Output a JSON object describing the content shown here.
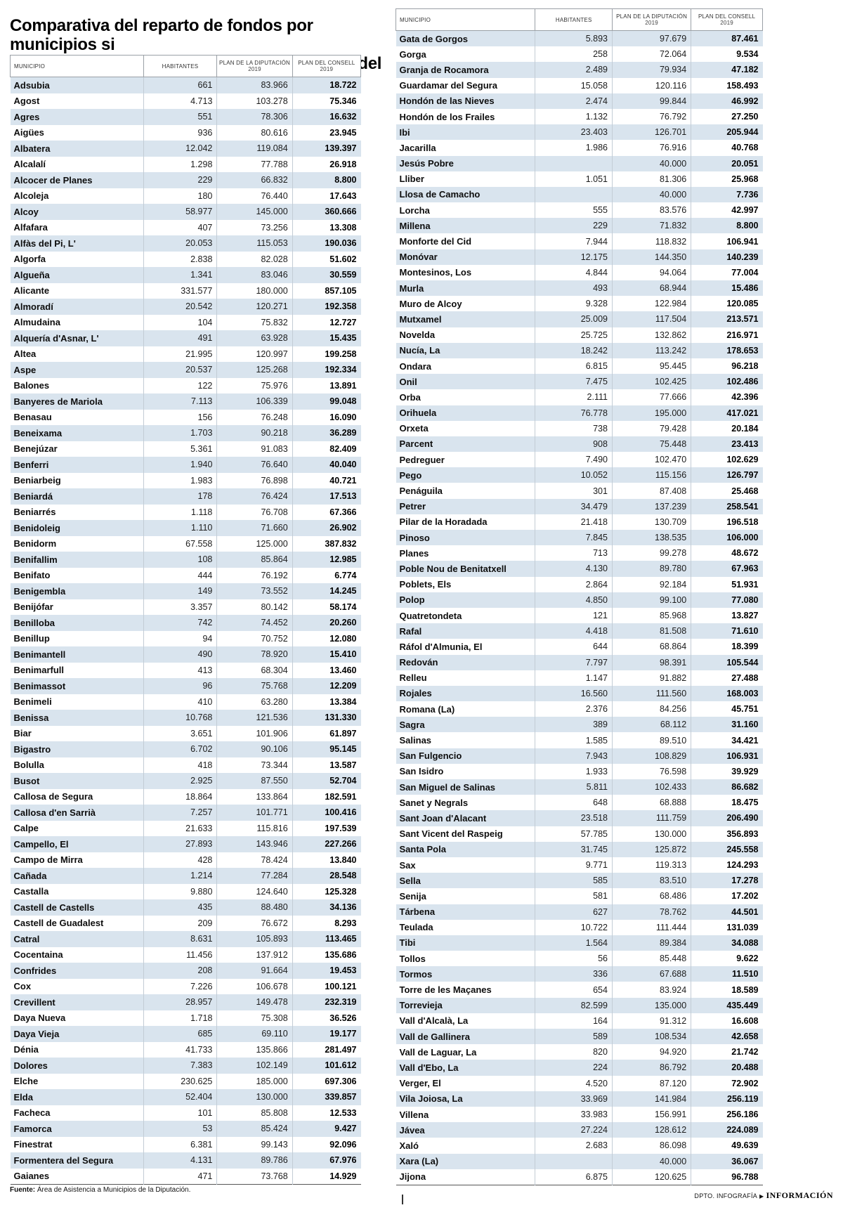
{
  "page": {
    "title_line1": "Comparativa del reparto de fondos por municipios si",
    "title_line2": "se aplicara el plan de la Diputación o el plan del Consell"
  },
  "header": {
    "municipio": "MUNICIPIO",
    "habitantes": "HABITANTES",
    "plan_diputacion": "PLAN DE LA DIPUTACIÓN",
    "plan_consell": "PLAN DEL CONSELL",
    "year": "2019"
  },
  "footer": {
    "source_label": "Fuente:",
    "source_text": " Área de Asistencia a Municipios de la Diputación.",
    "credit": "DPTO. INFOGRAFÍA",
    "brand": "INFORMACIÓN"
  },
  "colors": {
    "row_shade": "#d9e4ee"
  },
  "chart_data": [
    {
      "type": "table",
      "title": "Comparativa del reparto de fondos por municipios si se aplicara el plan de la Diputación o el plan del Consell",
      "columns": [
        "MUNICIPIO",
        "HABITANTES",
        "PLAN DE LA DIPUTACIÓN 2019",
        "PLAN DEL CONSELL 2019"
      ],
      "rows": [
        [
          "Adsubia",
          "661",
          "83.966",
          "18.722"
        ],
        [
          "Agost",
          "4.713",
          "103.278",
          "75.346"
        ],
        [
          "Agres",
          "551",
          "78.306",
          "16.632"
        ],
        [
          "Aigües",
          "936",
          "80.616",
          "23.945"
        ],
        [
          "Albatera",
          "12.042",
          "119.084",
          "139.397"
        ],
        [
          "Alcalalí",
          "1.298",
          "77.788",
          "26.918"
        ],
        [
          "Alcocer de Planes",
          "229",
          "66.832",
          "8.800"
        ],
        [
          "Alcoleja",
          "180",
          "76.440",
          "17.643"
        ],
        [
          "Alcoy",
          "58.977",
          "145.000",
          "360.666"
        ],
        [
          "Alfafara",
          "407",
          "73.256",
          "13.308"
        ],
        [
          "Alfàs del Pi, L'",
          "20.053",
          "115.053",
          "190.036"
        ],
        [
          "Algorfa",
          "2.838",
          "82.028",
          "51.602"
        ],
        [
          "Algueña",
          "1.341",
          "83.046",
          "30.559"
        ],
        [
          "Alicante",
          "331.577",
          "180.000",
          "857.105"
        ],
        [
          "Almoradí",
          "20.542",
          "120.271",
          "192.358"
        ],
        [
          "Almudaina",
          "104",
          "75.832",
          "12.727"
        ],
        [
          "Alquería d'Asnar, L'",
          "491",
          "63.928",
          "15.435"
        ],
        [
          "Altea",
          "21.995",
          "120.997",
          "199.258"
        ],
        [
          "Aspe",
          "20.537",
          "125.268",
          "192.334"
        ],
        [
          "Balones",
          "122",
          "75.976",
          "13.891"
        ],
        [
          "Banyeres de Mariola",
          "7.113",
          "106.339",
          "99.048"
        ],
        [
          "Benasau",
          "156",
          "76.248",
          "16.090"
        ],
        [
          "Beneixama",
          "1.703",
          "90.218",
          "36.289"
        ],
        [
          "Benejúzar",
          "5.361",
          "91.083",
          "82.409"
        ],
        [
          "Benferri",
          "1.940",
          "76.640",
          "40.040"
        ],
        [
          "Beniarbeig",
          "1.983",
          "76.898",
          "40.721"
        ],
        [
          "Beniardá",
          "178",
          "76.424",
          "17.513"
        ],
        [
          "Beniarrés",
          "1.118",
          "76.708",
          "67.366"
        ],
        [
          "Benidoleig",
          "1.110",
          "71.660",
          "26.902"
        ],
        [
          "Benidorm",
          "67.558",
          "125.000",
          "387.832"
        ],
        [
          "Benifallim",
          "108",
          "85.864",
          "12.985"
        ],
        [
          "Benifato",
          "444",
          "76.192",
          "6.774"
        ],
        [
          "Benigembla",
          "149",
          "73.552",
          "14.245"
        ],
        [
          "Benijófar",
          "3.357",
          "80.142",
          "58.174"
        ],
        [
          "Benilloba",
          "742",
          "74.452",
          "20.260"
        ],
        [
          "Benillup",
          "94",
          "70.752",
          "12.080"
        ],
        [
          "Benimantell",
          "490",
          "78.920",
          "15.410"
        ],
        [
          "Benimarfull",
          "413",
          "68.304",
          "13.460"
        ],
        [
          "Benimassot",
          "96",
          "75.768",
          "12.209"
        ],
        [
          "Benimeli",
          "410",
          "63.280",
          "13.384"
        ],
        [
          "Benissa",
          "10.768",
          "121.536",
          "131.330"
        ],
        [
          "Biar",
          "3.651",
          "101.906",
          "61.897"
        ],
        [
          "Bigastro",
          "6.702",
          "90.106",
          "95.145"
        ],
        [
          "Bolulla",
          "418",
          "73.344",
          "13.587"
        ],
        [
          "Busot",
          "2.925",
          "87.550",
          "52.704"
        ],
        [
          "Callosa de Segura",
          "18.864",
          "133.864",
          "182.591"
        ],
        [
          "Callosa d'en Sarrià",
          "7.257",
          "101.771",
          "100.416"
        ],
        [
          "Calpe",
          "21.633",
          "115.816",
          "197.539"
        ],
        [
          "Campello, El",
          "27.893",
          "143.946",
          "227.266"
        ],
        [
          "Campo de Mirra",
          "428",
          "78.424",
          "13.840"
        ],
        [
          "Cañada",
          "1.214",
          "77.284",
          "28.548"
        ],
        [
          "Castalla",
          "9.880",
          "124.640",
          "125.328"
        ],
        [
          "Castell de Castells",
          "435",
          "88.480",
          "34.136"
        ],
        [
          "Castell de Guadalest",
          "209",
          "76.672",
          "8.293"
        ],
        [
          "Catral",
          "8.631",
          "105.893",
          "113.465"
        ],
        [
          "Cocentaina",
          "11.456",
          "137.912",
          "135.686"
        ],
        [
          "Confrides",
          "208",
          "91.664",
          "19.453"
        ],
        [
          "Cox",
          "7.226",
          "106.678",
          "100.121"
        ],
        [
          "Crevillent",
          "28.957",
          "149.478",
          "232.319"
        ],
        [
          "Daya Nueva",
          "1.718",
          "75.308",
          "36.526"
        ],
        [
          "Daya Vieja",
          "685",
          "69.110",
          "19.177"
        ],
        [
          "Dénia",
          "41.733",
          "135.866",
          "281.497"
        ],
        [
          "Dolores",
          "7.383",
          "102.149",
          "101.612"
        ],
        [
          "Elche",
          "230.625",
          "185.000",
          "697.306"
        ],
        [
          "Elda",
          "52.404",
          "130.000",
          "339.857"
        ],
        [
          "Facheca",
          "101",
          "85.808",
          "12.533"
        ],
        [
          "Famorca",
          "53",
          "85.424",
          "9.427"
        ],
        [
          "Finestrat",
          "6.381",
          "99.143",
          "92.096"
        ],
        [
          "Formentera del Segura",
          "4.131",
          "89.786",
          "67.976"
        ],
        [
          "Gaianes",
          "471",
          "73.768",
          "14.929"
        ]
      ]
    },
    {
      "type": "table",
      "columns": [
        "MUNICIPIO",
        "HABITANTES",
        "PLAN DE LA DIPUTACIÓN 2019",
        "PLAN DEL CONSELL 2019"
      ],
      "rows": [
        [
          "Gata de Gorgos",
          "5.893",
          "97.679",
          "87.461"
        ],
        [
          "Gorga",
          "258",
          "72.064",
          "9.534"
        ],
        [
          "Granja de Rocamora",
          "2.489",
          "79.934",
          "47.182"
        ],
        [
          "Guardamar del Segura",
          "15.058",
          "120.116",
          "158.493"
        ],
        [
          "Hondón de las Nieves",
          "2.474",
          "99.844",
          "46.992"
        ],
        [
          "Hondón de los Frailes",
          "1.132",
          "76.792",
          "27.250"
        ],
        [
          "Ibi",
          "23.403",
          "126.701",
          "205.944"
        ],
        [
          "Jacarilla",
          "1.986",
          "76.916",
          "40.768"
        ],
        [
          "Jesús Pobre",
          "",
          "40.000",
          "20.051"
        ],
        [
          "Lliber",
          "1.051",
          "81.306",
          "25.968"
        ],
        [
          "Llosa de Camacho",
          "",
          "40.000",
          "7.736"
        ],
        [
          "Lorcha",
          "555",
          "83.576",
          "42.997"
        ],
        [
          "Millena",
          "229",
          "71.832",
          "8.800"
        ],
        [
          "Monforte del Cid",
          "7.944",
          "118.832",
          "106.941"
        ],
        [
          "Monóvar",
          "12.175",
          "144.350",
          "140.239"
        ],
        [
          "Montesinos, Los",
          "4.844",
          "94.064",
          "77.004"
        ],
        [
          "Murla",
          "493",
          "68.944",
          "15.486"
        ],
        [
          "Muro de Alcoy",
          "9.328",
          "122.984",
          "120.085"
        ],
        [
          "Mutxamel",
          "25.009",
          "117.504",
          "213.571"
        ],
        [
          "Novelda",
          "25.725",
          "132.862",
          "216.971"
        ],
        [
          "Nucía, La",
          "18.242",
          "113.242",
          "178.653"
        ],
        [
          "Ondara",
          "6.815",
          "95.445",
          "96.218"
        ],
        [
          "Onil",
          "7.475",
          "102.425",
          "102.486"
        ],
        [
          "Orba",
          "2.111",
          "77.666",
          "42.396"
        ],
        [
          "Orihuela",
          "76.778",
          "195.000",
          "417.021"
        ],
        [
          "Orxeta",
          "738",
          "79.428",
          "20.184"
        ],
        [
          "Parcent",
          "908",
          "75.448",
          "23.413"
        ],
        [
          "Pedreguer",
          "7.490",
          "102.470",
          "102.629"
        ],
        [
          "Pego",
          "10.052",
          "115.156",
          "126.797"
        ],
        [
          "Penáguila",
          "301",
          "87.408",
          "25.468"
        ],
        [
          "Petrer",
          "34.479",
          "137.239",
          "258.541"
        ],
        [
          "Pilar de la Horadada",
          "21.418",
          "130.709",
          "196.518"
        ],
        [
          "Pinoso",
          "7.845",
          "138.535",
          "106.000"
        ],
        [
          "Planes",
          "713",
          "99.278",
          "48.672"
        ],
        [
          "Poble Nou de Benitatxell",
          "4.130",
          "89.780",
          "67.963"
        ],
        [
          "Poblets, Els",
          "2.864",
          "92.184",
          "51.931"
        ],
        [
          "Polop",
          "4.850",
          "99.100",
          "77.080"
        ],
        [
          "Quatretondeta",
          "121",
          "85.968",
          "13.827"
        ],
        [
          "Rafal",
          "4.418",
          "81.508",
          "71.610"
        ],
        [
          "Ráfol d'Almunia, El",
          "644",
          "68.864",
          "18.399"
        ],
        [
          "Redován",
          "7.797",
          "98.391",
          "105.544"
        ],
        [
          "Relleu",
          "1.147",
          "91.882",
          "27.488"
        ],
        [
          "Rojales",
          "16.560",
          "111.560",
          "168.003"
        ],
        [
          "Romana (La)",
          "2.376",
          "84.256",
          "45.751"
        ],
        [
          "Sagra",
          "389",
          "68.112",
          "31.160"
        ],
        [
          "Salinas",
          "1.585",
          "89.510",
          "34.421"
        ],
        [
          "San Fulgencio",
          "7.943",
          "108.829",
          "106.931"
        ],
        [
          "San Isidro",
          "1.933",
          "76.598",
          "39.929"
        ],
        [
          "San Miguel de Salinas",
          "5.811",
          "102.433",
          "86.682"
        ],
        [
          "Sanet y Negrals",
          "648",
          "68.888",
          "18.475"
        ],
        [
          "Sant Joan d'Alacant",
          "23.518",
          "111.759",
          "206.490"
        ],
        [
          "Sant Vicent del Raspeig",
          "57.785",
          "130.000",
          "356.893"
        ],
        [
          "Santa Pola",
          "31.745",
          "125.872",
          "245.558"
        ],
        [
          "Sax",
          "9.771",
          "119.313",
          "124.293"
        ],
        [
          "Sella",
          "585",
          "83.510",
          "17.278"
        ],
        [
          "Senija",
          "581",
          "68.486",
          "17.202"
        ],
        [
          "Tárbena",
          "627",
          "78.762",
          "44.501"
        ],
        [
          "Teulada",
          "10.722",
          "111.444",
          "131.039"
        ],
        [
          "Tibi",
          "1.564",
          "89.384",
          "34.088"
        ],
        [
          "Tollos",
          "56",
          "85.448",
          "9.622"
        ],
        [
          "Tormos",
          "336",
          "67.688",
          "11.510"
        ],
        [
          "Torre de les Maçanes",
          "654",
          "83.924",
          "18.589"
        ],
        [
          "Torrevieja",
          "82.599",
          "135.000",
          "435.449"
        ],
        [
          "Vall d'Alcalà, La",
          "164",
          "91.312",
          "16.608"
        ],
        [
          "Vall de Gallinera",
          "589",
          "108.534",
          "42.658"
        ],
        [
          "Vall de Laguar, La",
          "820",
          "94.920",
          "21.742"
        ],
        [
          "Vall d'Ebo, La",
          "224",
          "86.792",
          "20.488"
        ],
        [
          "Verger, El",
          "4.520",
          "87.120",
          "72.902"
        ],
        [
          "Vila Joiosa, La",
          "33.969",
          "141.984",
          "256.119"
        ],
        [
          "Villena",
          "33.983",
          "156.991",
          "256.186"
        ],
        [
          "Jávea",
          "27.224",
          "128.612",
          "224.089"
        ],
        [
          "Xaló",
          "2.683",
          "86.098",
          "49.639"
        ],
        [
          "Xara (La)",
          "",
          "40.000",
          "36.067"
        ],
        [
          "Jijona",
          "6.875",
          "120.625",
          "96.788"
        ]
      ]
    }
  ]
}
